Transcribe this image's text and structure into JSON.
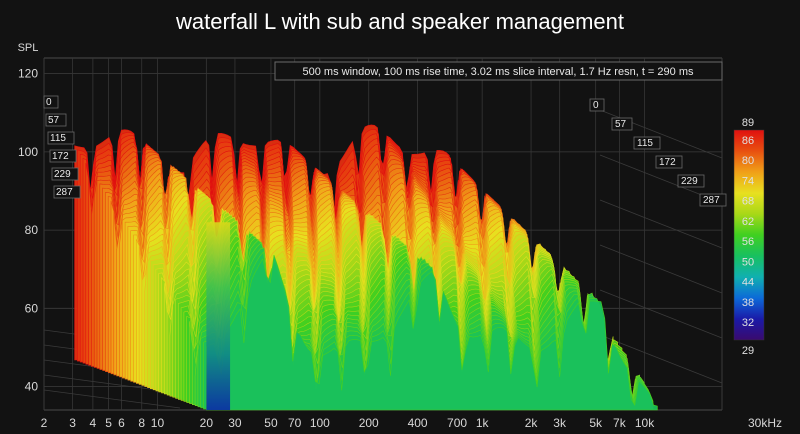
{
  "chart_data": {
    "type": "waterfall",
    "title": "waterfall L with sub and speaker management",
    "ylabel": "SPL",
    "xlabel_unit": "kHz",
    "x_ticks": [
      {
        "label": "2",
        "hz": 2
      },
      {
        "label": "3",
        "hz": 3
      },
      {
        "label": "4",
        "hz": 4
      },
      {
        "label": "5",
        "hz": 5
      },
      {
        "label": "6",
        "hz": 6
      },
      {
        "label": "8",
        "hz": 8
      },
      {
        "label": "10",
        "hz": 10
      },
      {
        "label": "20",
        "hz": 20
      },
      {
        "label": "30",
        "hz": 30
      },
      {
        "label": "50",
        "hz": 50
      },
      {
        "label": "70",
        "hz": 70
      },
      {
        "label": "100",
        "hz": 100
      },
      {
        "label": "200",
        "hz": 200
      },
      {
        "label": "400",
        "hz": 400
      },
      {
        "label": "700",
        "hz": 700
      },
      {
        "label": "1k",
        "hz": 1000
      },
      {
        "label": "2k",
        "hz": 2000
      },
      {
        "label": "3k",
        "hz": 3000
      },
      {
        "label": "5k",
        "hz": 5000
      },
      {
        "label": "7k",
        "hz": 7000
      },
      {
        "label": "10k",
        "hz": 10000
      },
      {
        "label": "30kHz",
        "hz": 30000
      }
    ],
    "y_ticks": [
      40,
      60,
      80,
      100,
      120
    ],
    "ylim": [
      34,
      124
    ],
    "xlim_hz": [
      2,
      30000
    ],
    "info_text": "500 ms window, 100 ms rise time, 3.02 ms slice interval, 1.7 Hz resn, t = 290 ms",
    "time_labels_left": [
      "0",
      "57",
      "115",
      "172",
      "229",
      "287"
    ],
    "time_labels_right": [
      "0",
      "57",
      "115",
      "172",
      "229",
      "287"
    ],
    "colorbar_labels": [
      "89",
      "86",
      "80",
      "74",
      "68",
      "62",
      "56",
      "50",
      "44",
      "38",
      "32",
      "29"
    ],
    "colorbar_min": 29,
    "colorbar_max": 89,
    "colorbar_colors": [
      "#3a0a6e",
      "#1a1aa8",
      "#0c6ad8",
      "#10b0b0",
      "#18c060",
      "#40d020",
      "#a8d818",
      "#e8e020",
      "#f0a018",
      "#e85010",
      "#e01010"
    ],
    "slices": {
      "count": 48,
      "start_time_ms": 0,
      "end_time_ms": 290,
      "f_low_hz": 20,
      "f_high_hz": 12000,
      "front_level_db": 88,
      "decay_db_over_window": 40,
      "highfreq_rolloff_start_hz": 4000
    }
  }
}
